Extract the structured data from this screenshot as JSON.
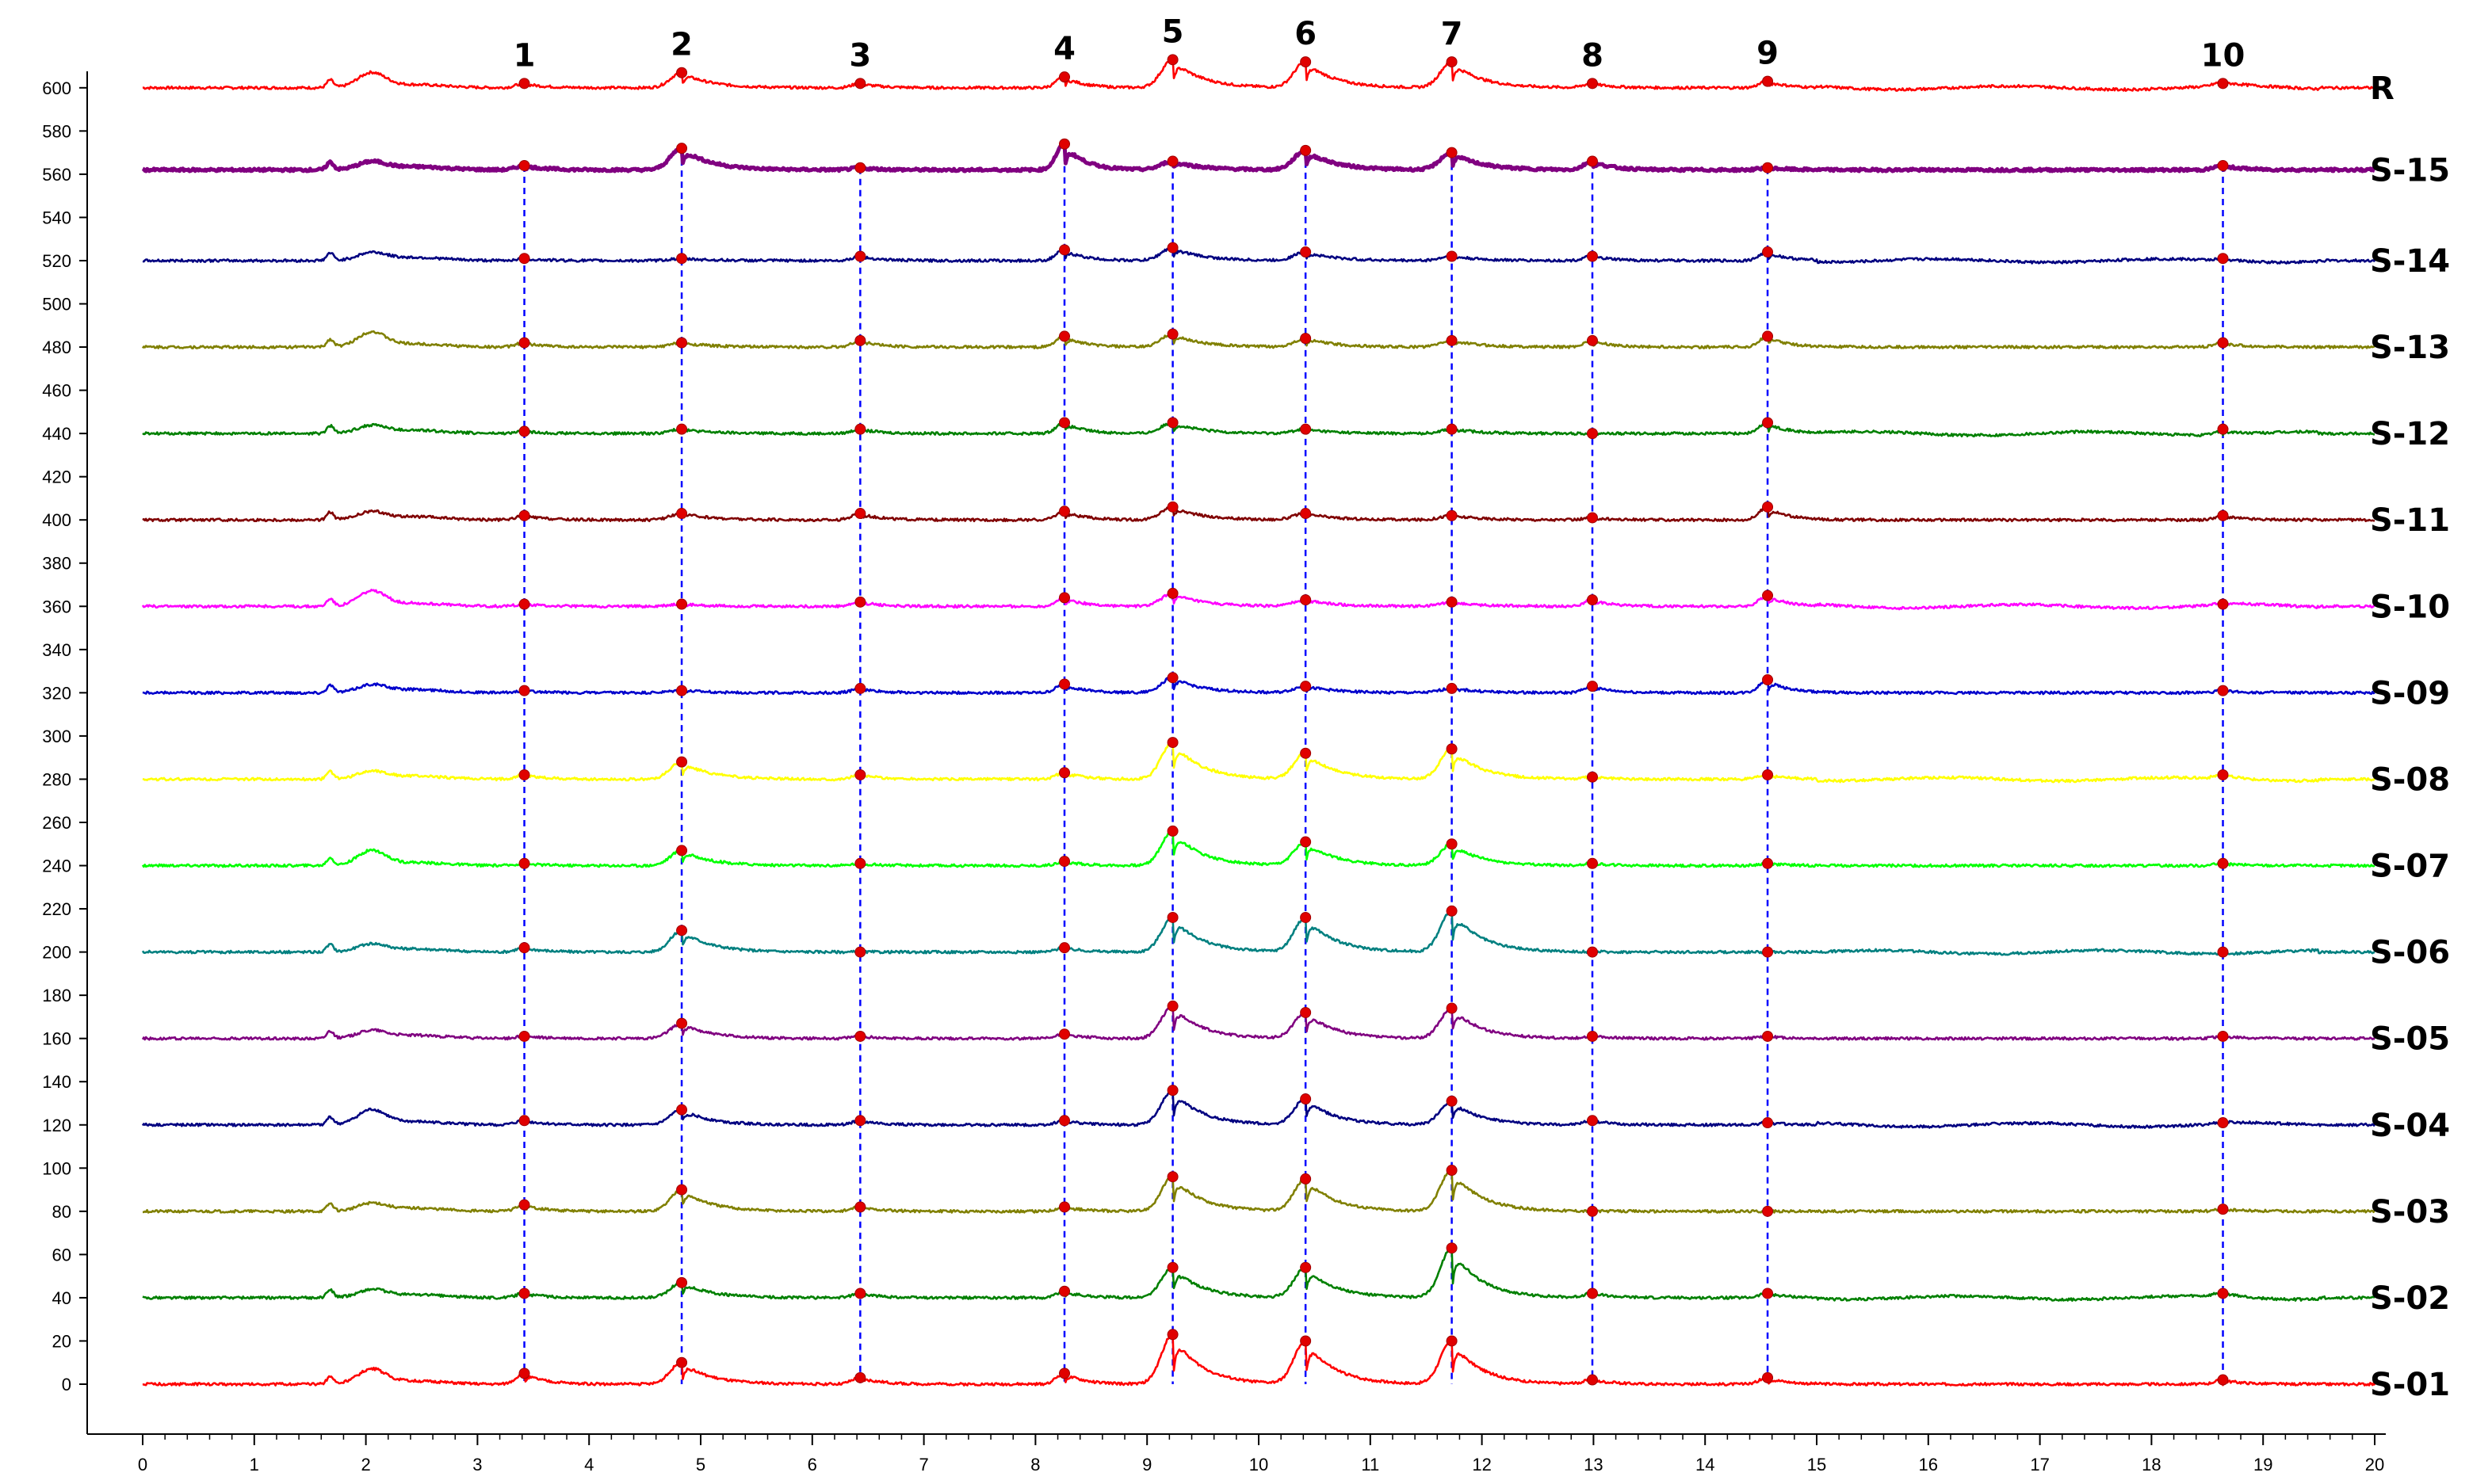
{
  "chart_data": {
    "type": "line",
    "title": "",
    "xlabel": "",
    "ylabel": "",
    "xlim": [
      0,
      20
    ],
    "ylim": [
      -10,
      625
    ],
    "x_ticks": [
      0,
      1,
      2,
      3,
      4,
      5,
      6,
      7,
      8,
      9,
      10,
      11,
      12,
      13,
      14,
      15,
      16,
      17,
      18,
      19,
      20
    ],
    "y_ticks": [
      0,
      20,
      40,
      60,
      80,
      100,
      120,
      140,
      160,
      180,
      200,
      220,
      240,
      260,
      280,
      300,
      320,
      340,
      360,
      380,
      400,
      420,
      440,
      460,
      480,
      500,
      520,
      540,
      560,
      580,
      600
    ],
    "peaks": [
      {
        "label": "1",
        "x": 3.42
      },
      {
        "label": "2",
        "x": 4.83
      },
      {
        "label": "3",
        "x": 6.43
      },
      {
        "label": "4",
        "x": 8.26
      },
      {
        "label": "5",
        "x": 9.23
      },
      {
        "label": "6",
        "x": 10.42
      },
      {
        "label": "7",
        "x": 11.73
      },
      {
        "label": "8",
        "x": 12.99
      },
      {
        "label": "9",
        "x": 14.56
      },
      {
        "label": "10",
        "x": 18.64
      }
    ],
    "series": [
      {
        "name": "R",
        "color": "#ff0000",
        "baseline": 600,
        "heights": [
          2,
          7,
          2,
          5,
          13,
          12,
          12,
          2,
          3,
          2
        ]
      },
      {
        "name": "S-15",
        "color": "#800080",
        "baseline": 562,
        "heights": [
          2,
          10,
          1,
          12,
          4,
          9,
          8,
          4,
          1,
          2
        ]
      },
      {
        "name": "S-14",
        "color": "#000080",
        "baseline": 520,
        "heights": [
          1,
          1,
          2,
          5,
          6,
          4,
          2,
          2,
          4,
          1
        ]
      },
      {
        "name": "S-13",
        "color": "#808000",
        "baseline": 480,
        "heights": [
          2,
          2,
          3,
          5,
          6,
          4,
          3,
          3,
          5,
          2
        ]
      },
      {
        "name": "S-12",
        "color": "#008000",
        "baseline": 440,
        "heights": [
          1,
          2,
          2,
          5,
          5,
          2,
          2,
          0,
          5,
          2
        ]
      },
      {
        "name": "S-11",
        "color": "#800000",
        "baseline": 400,
        "heights": [
          2,
          3,
          3,
          4,
          6,
          3,
          2,
          1,
          6,
          2
        ]
      },
      {
        "name": "S-10",
        "color": "#ff00ff",
        "baseline": 360,
        "heights": [
          1,
          1,
          2,
          4,
          6,
          3,
          2,
          3,
          5,
          1
        ]
      },
      {
        "name": "S-09",
        "color": "#0000cc",
        "baseline": 320,
        "heights": [
          1,
          1,
          2,
          4,
          7,
          3,
          2,
          3,
          6,
          1
        ]
      },
      {
        "name": "S-08",
        "color": "#ffff00",
        "baseline": 280,
        "heights": [
          2,
          8,
          2,
          3,
          17,
          12,
          14,
          1,
          2,
          2
        ]
      },
      {
        "name": "S-07",
        "color": "#00ff00",
        "baseline": 240,
        "heights": [
          1,
          7,
          1,
          2,
          16,
          11,
          10,
          1,
          1,
          1
        ]
      },
      {
        "name": "S-06",
        "color": "#008080",
        "baseline": 200,
        "heights": [
          2,
          10,
          0,
          2,
          16,
          16,
          19,
          0,
          0,
          0
        ]
      },
      {
        "name": "S-05",
        "color": "#800080",
        "baseline": 160,
        "heights": [
          1,
          7,
          1,
          2,
          15,
          12,
          14,
          1,
          1,
          1
        ]
      },
      {
        "name": "S-04",
        "color": "#000080",
        "baseline": 120,
        "heights": [
          2,
          7,
          2,
          2,
          16,
          12,
          11,
          2,
          1,
          1
        ]
      },
      {
        "name": "S-03",
        "color": "#808000",
        "baseline": 80,
        "heights": [
          3,
          10,
          2,
          2,
          16,
          15,
          19,
          0,
          0,
          1
        ]
      },
      {
        "name": "S-02",
        "color": "#008000",
        "baseline": 40,
        "heights": [
          2,
          7,
          2,
          3,
          14,
          14,
          23,
          2,
          2,
          2
        ]
      },
      {
        "name": "S-01",
        "color": "#ff0000",
        "baseline": 0,
        "heights": [
          5,
          10,
          3,
          5,
          23,
          20,
          20,
          2,
          3,
          2
        ]
      }
    ],
    "marker_color": "#e00000",
    "guide_color": "#0000ff",
    "axis_color": "#000000",
    "grid": false
  }
}
